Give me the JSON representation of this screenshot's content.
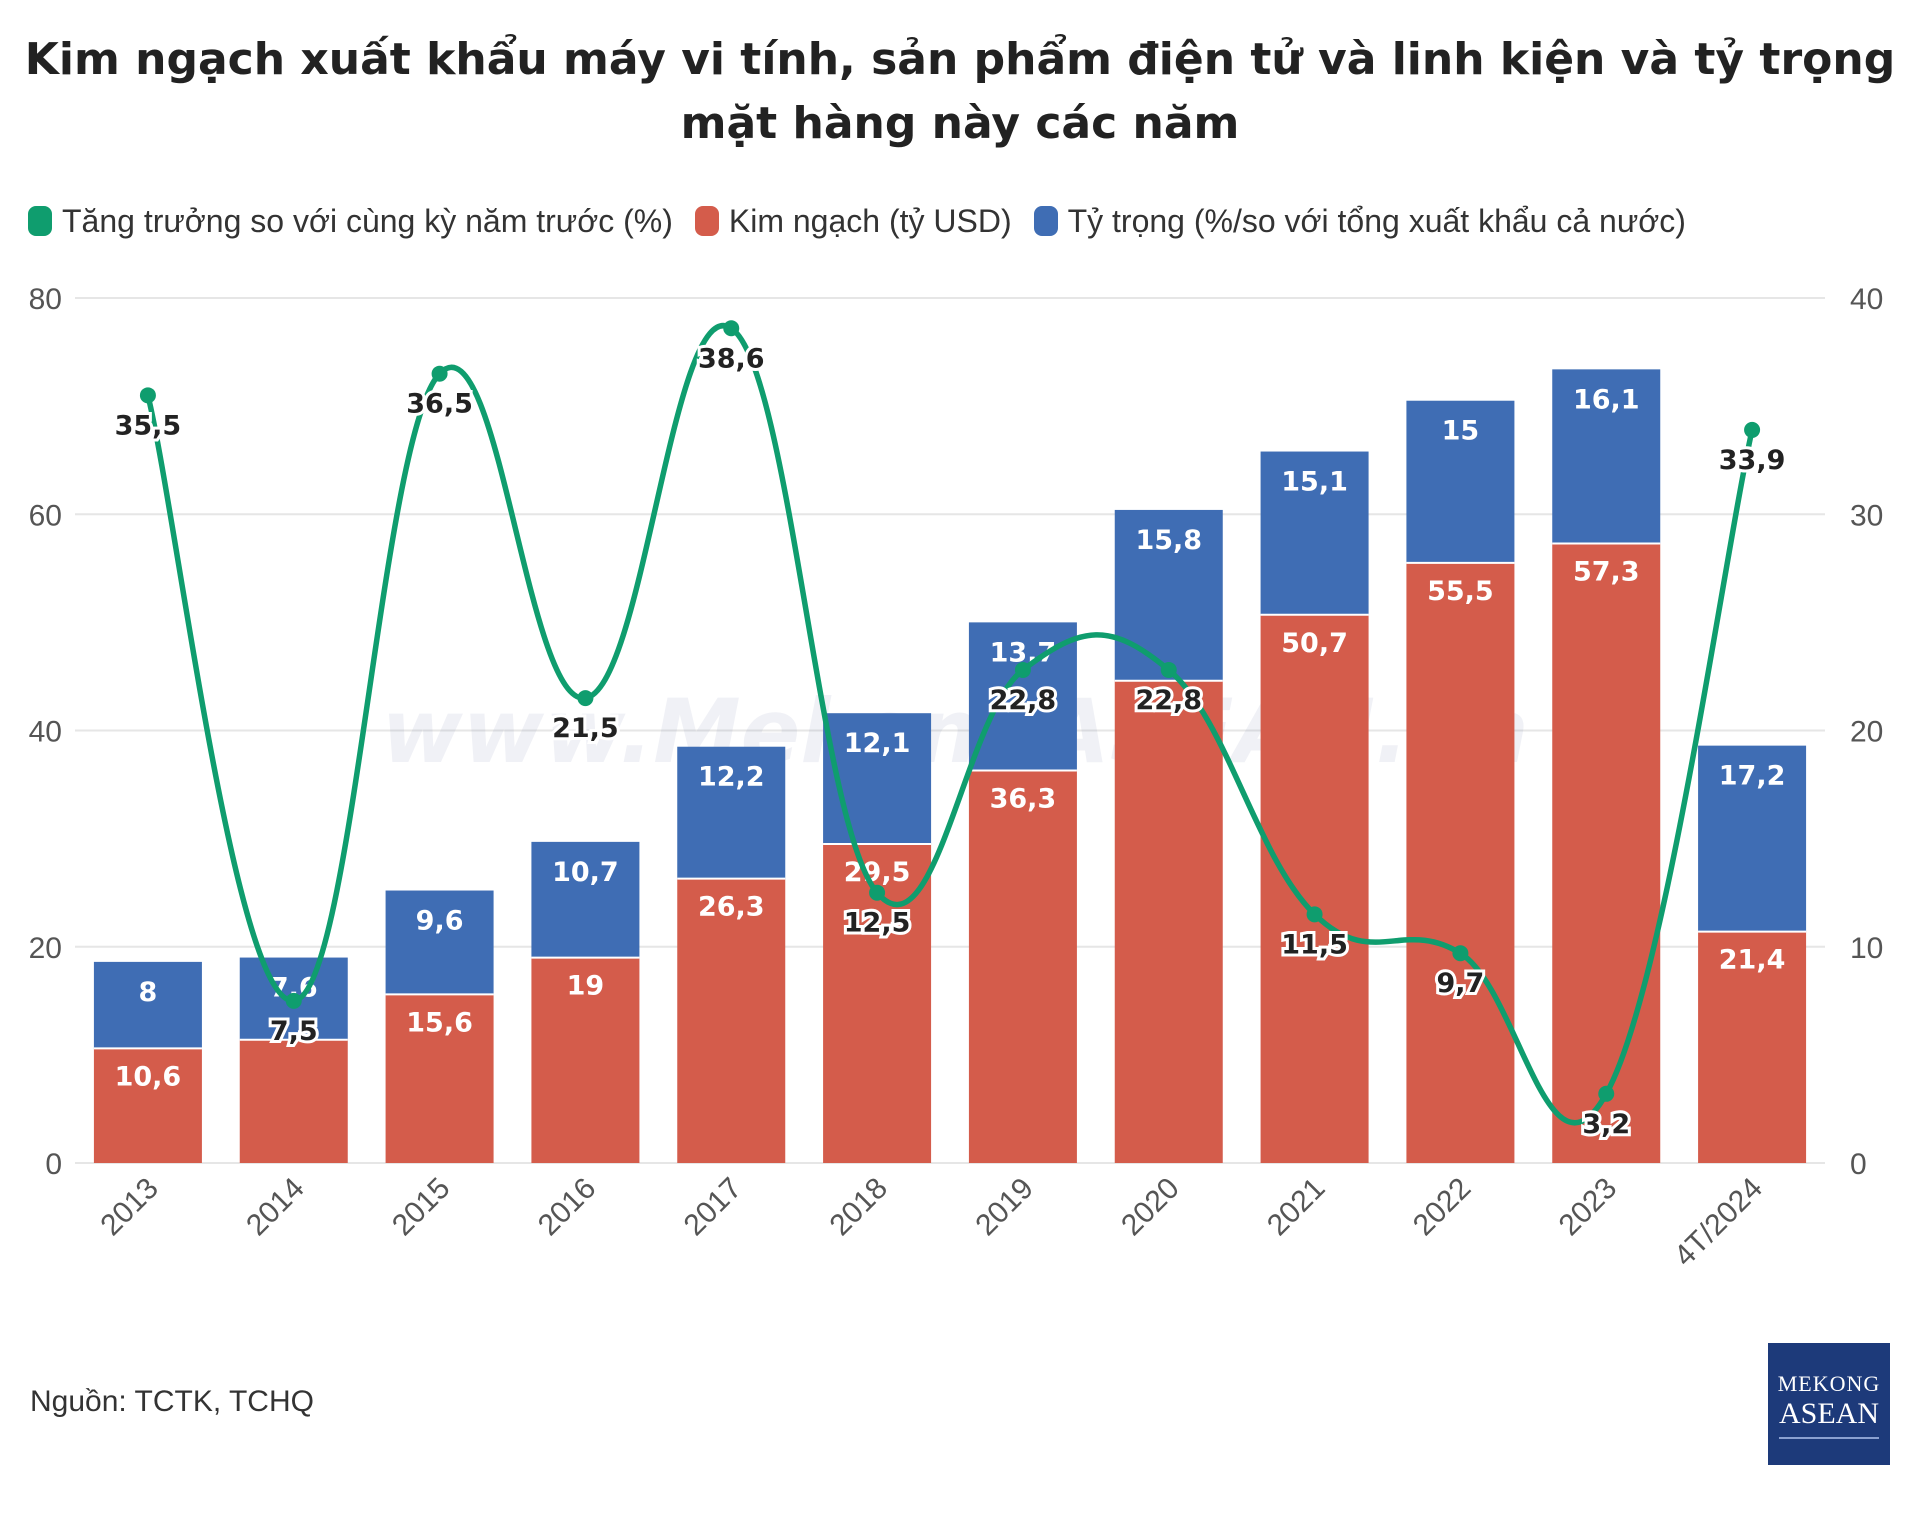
{
  "title_lines": [
    "Kim ngạch xuất khẩu máy vi tính, sản phẩm điện tử và linh kiện và tỷ trọng",
    "mặt hàng này các năm"
  ],
  "legend": [
    {
      "label": "Tăng trưởng so với cùng kỳ năm trước (%)",
      "color": "#0f9d6e"
    },
    {
      "label": "Kim ngạch (tỷ USD)",
      "color": "#d45c4b"
    },
    {
      "label": "Tỷ trọng (%/so với tổng xuất khẩu cả nước)",
      "color": "#3f6db4"
    }
  ],
  "source": "Nguồn: TCTK, TCHQ",
  "logo": {
    "line1": "MEKONG",
    "line2": "ASEAN"
  },
  "watermark": "www.MekongASEAN.vn",
  "chart_data": {
    "type": "bar",
    "stacked": true,
    "categories": [
      "2013",
      "2014",
      "2015",
      "2016",
      "2017",
      "2018",
      "2019",
      "2020",
      "2021",
      "2022",
      "2023",
      "4T/2024"
    ],
    "series": [
      {
        "name": "Kim ngạch (tỷ USD)",
        "axis": "left",
        "color": "#d45c4b",
        "values": [
          10.6,
          11.4,
          15.6,
          19,
          26.3,
          29.5,
          36.3,
          44.6,
          50.7,
          55.5,
          57.3,
          21.4
        ],
        "labels": [
          "10,6",
          "",
          "15,6",
          "19",
          "26,3",
          "29,5",
          "36,3",
          "",
          "50,7",
          "55,5",
          "57,3",
          "21,4"
        ]
      },
      {
        "name": "Tỷ trọng (%/so với tổng xuất khẩu cả nước)",
        "axis": "left",
        "color": "#3f6db4",
        "values": [
          8,
          7.6,
          9.6,
          10.7,
          12.2,
          12.1,
          13.7,
          15.8,
          15.1,
          15,
          16.1,
          17.2
        ],
        "labels": [
          "8",
          "7,6",
          "9,6",
          "10,7",
          "12,2",
          "12,1",
          "13,7",
          "15,8",
          "15,1",
          "15",
          "16,1",
          "17,2"
        ]
      },
      {
        "name": "Tăng trưởng so với cùng kỳ năm trước (%)",
        "type": "line",
        "axis": "right",
        "color": "#0f9d6e",
        "values": [
          35.5,
          7.5,
          36.5,
          21.5,
          38.6,
          12.5,
          22.8,
          22.8,
          11.5,
          9.7,
          3.2,
          33.9
        ],
        "labels": [
          "35,5",
          "7,5",
          "36,5",
          "21,5",
          "38,6",
          "12,5",
          "22,8",
          "22,8",
          "11,5",
          "9,7",
          "3,2",
          "33,9"
        ]
      }
    ],
    "y_left": {
      "min": 0,
      "max": 80,
      "ticks": [
        "0",
        "20",
        "40",
        "60",
        "80"
      ]
    },
    "y_right": {
      "min": 0,
      "max": 40,
      "ticks": [
        "0",
        "10",
        "20",
        "30",
        "40"
      ]
    }
  }
}
